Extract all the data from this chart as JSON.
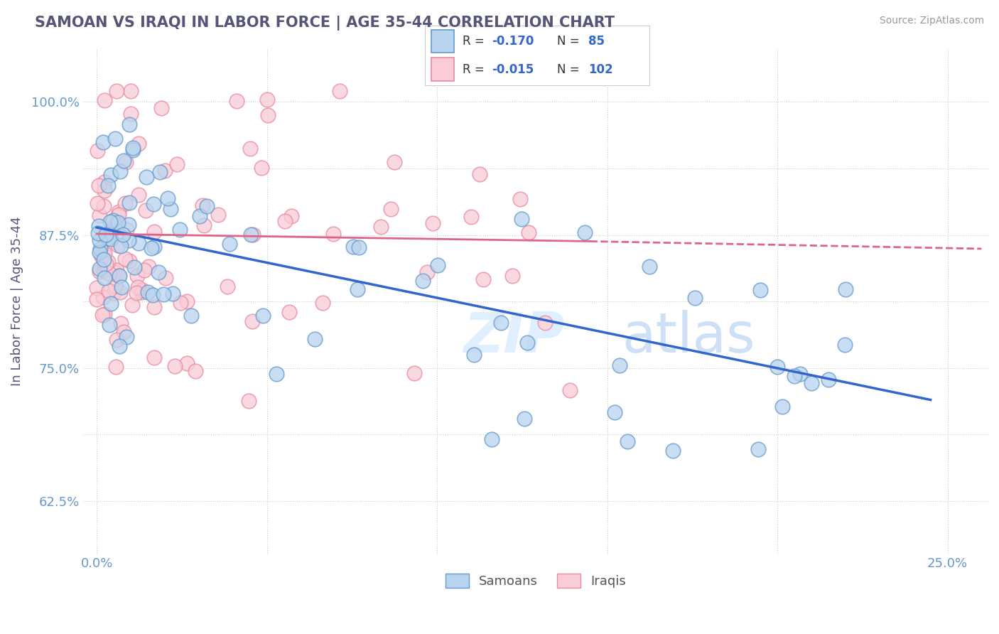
{
  "title": "SAMOAN VS IRAQI IN LABOR FORCE | AGE 35-44 CORRELATION CHART",
  "source_text": "Source: ZipAtlas.com",
  "ylabel": "In Labor Force | Age 35-44",
  "x_tick_positions": [
    0.0,
    0.05,
    0.1,
    0.15,
    0.2,
    0.25
  ],
  "x_tick_labels": [
    "0.0%",
    "",
    "",
    "",
    "",
    "25.0%"
  ],
  "y_tick_positions": [
    0.625,
    0.6875,
    0.75,
    0.8125,
    0.875,
    0.9375,
    1.0
  ],
  "y_tick_labels": [
    "62.5%",
    "",
    "75.0%",
    "",
    "87.5%",
    "",
    "100.0%"
  ],
  "blue_fill_color": "#b8d4ee",
  "blue_edge_color": "#6699cc",
  "pink_fill_color": "#f9ccd8",
  "pink_edge_color": "#e88aa0",
  "blue_line_color": "#3366cc",
  "pink_line_color": "#dd6688",
  "R_blue": -0.17,
  "N_blue": 85,
  "R_pink": -0.015,
  "N_pink": 102,
  "background_color": "#ffffff",
  "grid_color": "#cccccc",
  "title_color": "#555577",
  "axis_tick_color": "#6699cc",
  "legend_text_r_color": "#000000",
  "legend_text_n_color": "#3366cc",
  "watermark_zip_color": "#ddeeff",
  "watermark_atlas_color": "#ddeeff",
  "xlim": [
    -0.004,
    0.262
  ],
  "ylim": [
    0.575,
    1.05
  ],
  "blue_line_x0": 0.0,
  "blue_line_x1": 0.245,
  "blue_line_y0": 0.882,
  "blue_line_y1": 0.72,
  "pink_line_solid_x0": 0.0,
  "pink_line_solid_x1": 0.145,
  "pink_line_solid_y0": 0.876,
  "pink_line_solid_y1": 0.869,
  "pink_line_dash_x0": 0.145,
  "pink_line_dash_x1": 0.26,
  "pink_line_dash_y0": 0.869,
  "pink_line_dash_y1": 0.862
}
